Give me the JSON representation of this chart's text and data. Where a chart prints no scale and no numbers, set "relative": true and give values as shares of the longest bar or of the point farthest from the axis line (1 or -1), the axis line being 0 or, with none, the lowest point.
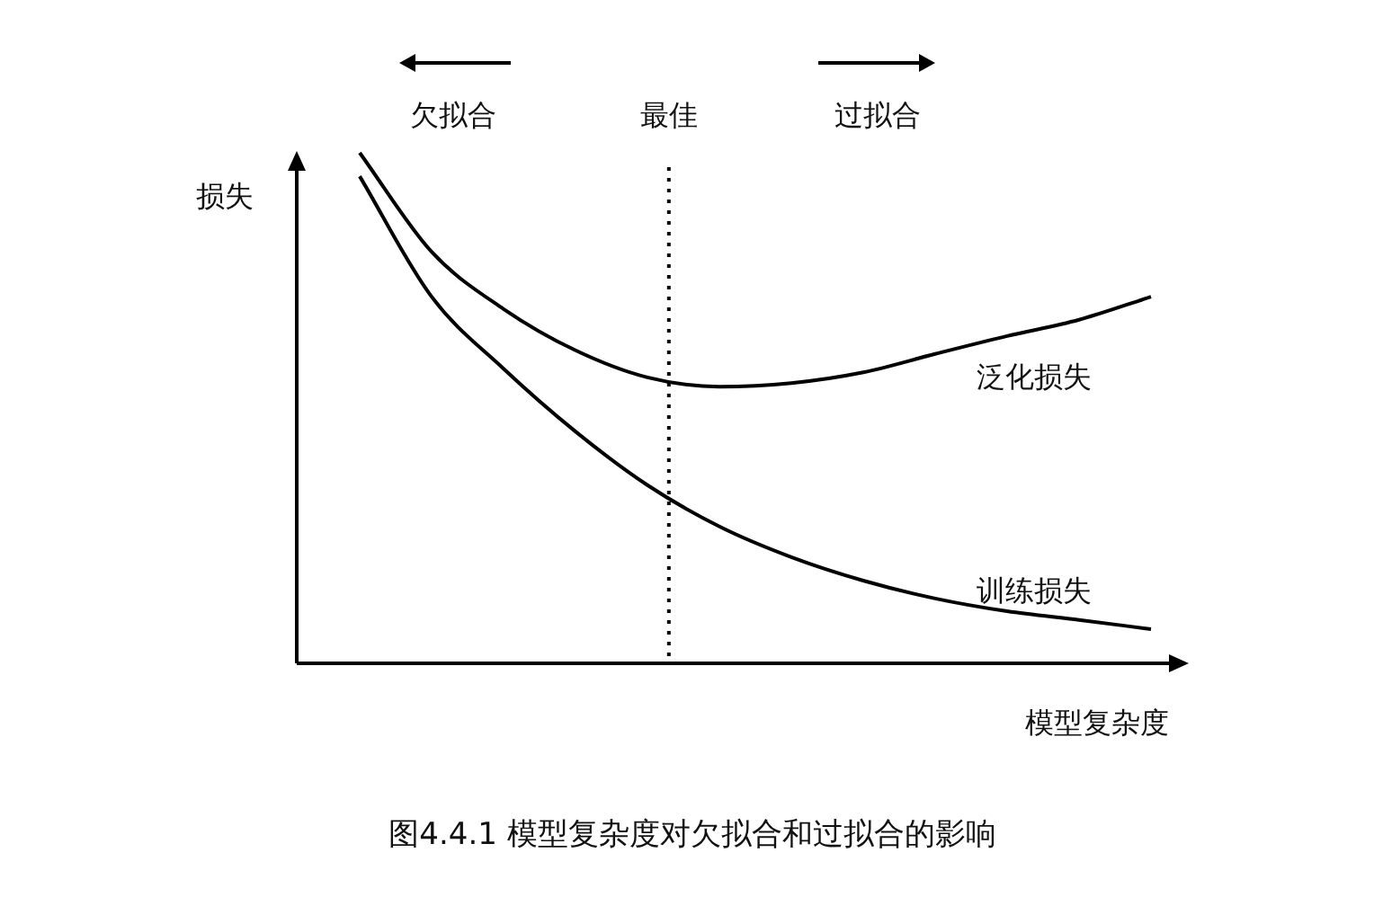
{
  "chart_data": {
    "type": "line",
    "relative": true,
    "xlabel": "模型复杂度",
    "ylabel": "损失",
    "categories": [
      null,
      null,
      null,
      null,
      null,
      null,
      null,
      null,
      null,
      null,
      null,
      null
    ],
    "series": [
      {
        "name": "泛化损失",
        "color": "#000000",
        "values": [
          1.0,
          0.806,
          0.694,
          0.613,
          0.56,
          0.542,
          0.549,
          0.57,
          0.606,
          0.641,
          0.673,
          0.718
        ]
      },
      {
        "name": "训练损失",
        "color": "#000000",
        "values": [
          0.954,
          0.718,
          0.577,
          0.454,
          0.349,
          0.268,
          0.208,
          0.162,
          0.127,
          0.102,
          0.085,
          0.067
        ]
      }
    ],
    "annotations": [
      "欠拟合",
      "最佳",
      "过拟合",
      "图4.4.1  模型复杂度对欠拟合和过拟合的影响"
    ],
    "legend": false,
    "marker": "none",
    "line_style": "solid"
  }
}
